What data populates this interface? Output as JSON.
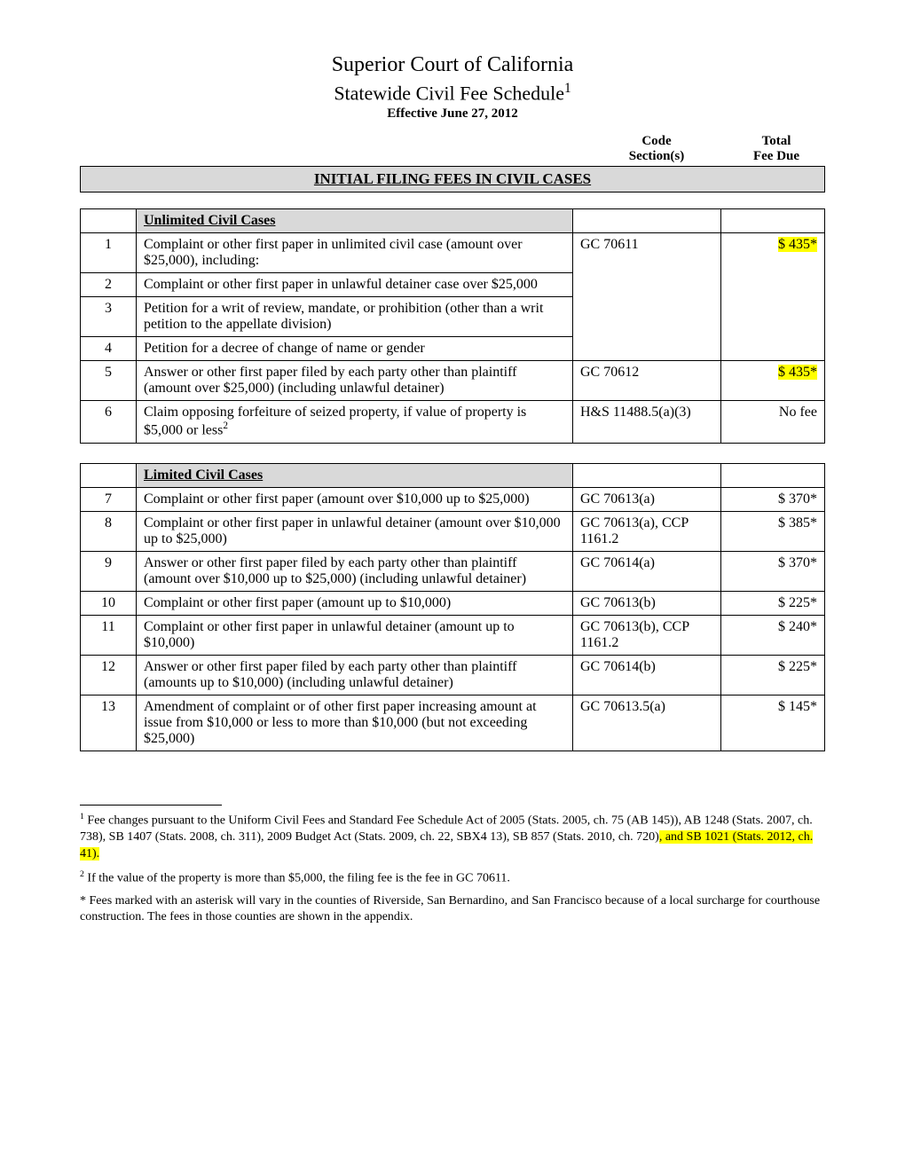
{
  "header": {
    "title": "Superior Court of California",
    "subtitle": "Statewide Civil Fee Schedule",
    "subtitleSup": "1",
    "effective": "Effective June 27, 2012",
    "col_code_l1": "Code",
    "col_code_l2": "Section(s)",
    "col_fee_l1": "Total",
    "col_fee_l2": "Fee Due"
  },
  "section_banner": "INITIAL FILING FEES IN CIVIL CASES",
  "table1": {
    "heading": "Unlimited Civil Cases",
    "rows": [
      {
        "n": "1",
        "desc": "Complaint or other first paper in unlimited civil case (amount over $25,000), including:",
        "code": "GC 70611",
        "fee": "$ 435*",
        "hl": true,
        "merge_start": true
      },
      {
        "n": "2",
        "desc": "Complaint or other first paper in unlawful detainer case over $25,000",
        "code": "",
        "fee": "",
        "merge_mid": true
      },
      {
        "n": "3",
        "desc": "Petition for a writ of review, mandate, or prohibition (other than a writ petition to the appellate division)",
        "code": "",
        "fee": "",
        "merge_mid": true
      },
      {
        "n": "4",
        "desc": "Petition for a decree of change of name or gender",
        "code": "",
        "fee": "",
        "merge_end": true
      },
      {
        "n": "5",
        "desc": "Answer or other first paper filed by each party other than plaintiff (amount over $25,000) (including unlawful detainer)",
        "code": "GC 70612",
        "fee": "$ 435*",
        "hl": true
      },
      {
        "n": "6",
        "desc": "Claim opposing forfeiture of seized property, if value of property is $5,000 or less",
        "descSup": "2",
        "code": "H&S 11488.5(a)(3)",
        "fee": "No fee"
      }
    ]
  },
  "table2": {
    "heading": "Limited Civil Cases",
    "rows": [
      {
        "n": "7",
        "desc": "Complaint or other first paper (amount over $10,000 up to $25,000)",
        "code": "GC 70613(a)",
        "fee": "$ 370*"
      },
      {
        "n": "8",
        "desc": "Complaint or other first paper in unlawful detainer (amount over $10,000 up to $25,000)",
        "code": "GC 70613(a), CCP 1161.2",
        "fee": "$ 385*"
      },
      {
        "n": "9",
        "desc": "Answer or other first paper filed by each party other than plaintiff (amount over $10,000 up to $25,000) (including unlawful detainer)",
        "code": "GC 70614(a)",
        "fee": "$ 370*"
      },
      {
        "n": "10",
        "desc": "Complaint or other first paper (amount up to $10,000)",
        "code": "GC 70613(b)",
        "fee": "$ 225*"
      },
      {
        "n": "11",
        "desc": "Complaint or other first paper in unlawful detainer (amount up to $10,000)",
        "code": "GC 70613(b), CCP 1161.2",
        "fee": "$ 240*"
      },
      {
        "n": "12",
        "desc": "Answer or other first paper filed by each party other than plaintiff (amounts up to $10,000) (including unlawful detainer)",
        "code": "GC 70614(b)",
        "fee": "$ 225*"
      },
      {
        "n": "13",
        "desc": "Amendment of complaint or of other first paper increasing amount at issue from $10,000 or less to more than $10,000 (but not exceeding $25,000)",
        "code": "GC 70613.5(a)",
        "fee": "$ 145*"
      }
    ]
  },
  "footnotes": {
    "f1_pre": " Fee changes pursuant to the Uniform Civil Fees and Standard Fee Schedule Act of 2005 (Stats. 2005, ch. 75 (AB 145)), AB 1248 (Stats. 2007, ch. 738), SB 1407 (Stats. 2008, ch. 311), 2009 Budget Act (Stats. 2009, ch. 22, SBX4 13), SB 857 (Stats. 2010, ch. 720)",
    "f1_hl": ", and SB 1021 (Stats. 2012, ch. 41).",
    "f2": " If the value of the property is more than $5,000, the filing fee is the fee in GC 70611.",
    "fstar": "* Fees marked with an asterisk will vary in the counties of Riverside, San Bernardino, and San Francisco because of a local surcharge for courthouse construction.  The fees in those counties are shown in the appendix."
  },
  "style": {
    "highlight_color": "#ffff00",
    "banner_bg": "#d9d9d9",
    "border_color": "#000000",
    "page_bg": "#ffffff",
    "body_fontsize": 16,
    "title_fontsize": 24
  }
}
